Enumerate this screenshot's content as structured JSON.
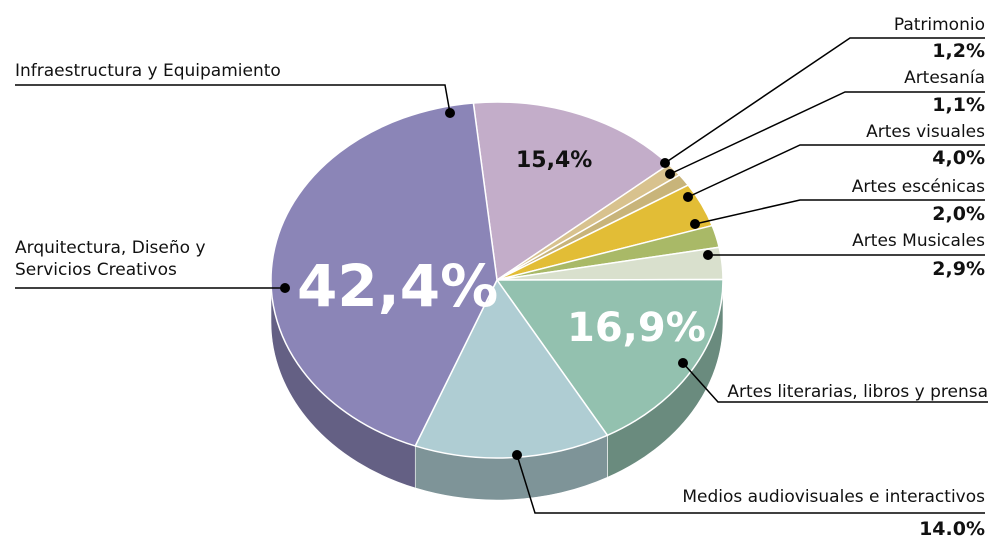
{
  "chart_data": {
    "type": "pie",
    "categories": [
      "Infraestructura y Equipamiento",
      "Patrimonio",
      "Artesanía",
      "Artes visuales",
      "Artes escénicas",
      "Artes Musicales",
      "Artes literarias, libros y prensa",
      "Medios audiovisuales e interactivos",
      "Arquitectura, Diseño y Servicios Creativos"
    ],
    "values": [
      15.4,
      1.2,
      1.1,
      4.0,
      2.0,
      2.9,
      16.9,
      14.0,
      42.4
    ],
    "value_labels": [
      "15,4%",
      "1,2%",
      "1,1%",
      "4,0%",
      "2,0%",
      "2,9%",
      "16,9%",
      "14.0%",
      "42,4%"
    ],
    "colors": [
      "#c3adc9",
      "#d8c28e",
      "#c8b47a",
      "#e2bd36",
      "#a9b967",
      "#d9e0cd",
      "#93c1af",
      "#afcdd3",
      "#8b85b7"
    ]
  }
}
